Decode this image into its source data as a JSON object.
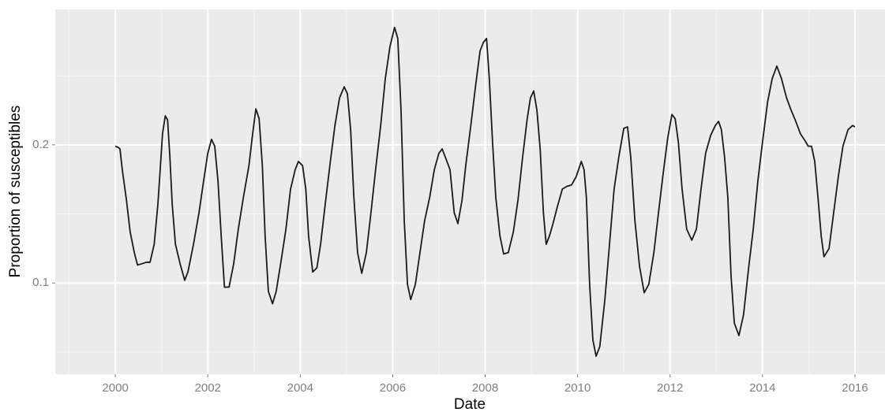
{
  "chart_data": {
    "type": "line",
    "x_label": "Date",
    "y_label": "Proportion of susceptibles",
    "color": "#1a1a1a",
    "grid": true,
    "xlim": [
      1998.7,
      2016.65
    ],
    "ylim": [
      0.034,
      0.298
    ],
    "xticks": [
      2000,
      2002,
      2004,
      2006,
      2008,
      2010,
      2012,
      2014,
      2016
    ],
    "yticks": [
      0.1,
      0.2
    ],
    "x": [
      2000.0,
      2000.07,
      2000.1,
      2000.15,
      2000.24,
      2000.32,
      2000.41,
      2000.48,
      2000.58,
      2000.67,
      2000.75,
      2000.84,
      2000.92,
      2000.97,
      2001.02,
      2001.08,
      2001.13,
      2001.18,
      2001.23,
      2001.3,
      2001.4,
      2001.5,
      2001.57,
      2001.69,
      2001.81,
      2001.91,
      2002.0,
      2002.08,
      2002.15,
      2002.22,
      2002.29,
      2002.36,
      2002.46,
      2002.56,
      2002.66,
      2002.77,
      2002.89,
      2002.97,
      2003.04,
      2003.11,
      2003.18,
      2003.24,
      2003.31,
      2003.4,
      2003.48,
      2003.59,
      2003.69,
      2003.79,
      2003.89,
      2003.96,
      2004.05,
      2004.12,
      2004.18,
      2004.27,
      2004.36,
      2004.44,
      2004.54,
      2004.64,
      2004.75,
      2004.85,
      2004.95,
      2005.02,
      2005.09,
      2005.16,
      2005.24,
      2005.33,
      2005.43,
      2005.53,
      2005.63,
      2005.74,
      2005.84,
      2005.94,
      2006.04,
      2006.11,
      2006.18,
      2006.25,
      2006.32,
      2006.39,
      2006.49,
      2006.59,
      2006.69,
      2006.8,
      2006.9,
      2007.0,
      2007.07,
      2007.14,
      2007.24,
      2007.33,
      2007.41,
      2007.5,
      2007.58,
      2007.69,
      2007.79,
      2007.89,
      2007.96,
      2008.03,
      2008.09,
      2008.16,
      2008.23,
      2008.32,
      2008.4,
      2008.5,
      2008.61,
      2008.71,
      2008.81,
      2008.91,
      2008.98,
      2009.05,
      2009.12,
      2009.19,
      2009.26,
      2009.32,
      2009.39,
      2009.46,
      2009.56,
      2009.67,
      2009.77,
      2009.87,
      2009.97,
      2010.08,
      2010.14,
      2010.19,
      2010.26,
      2010.33,
      2010.4,
      2010.48,
      2010.59,
      2010.69,
      2010.79,
      2010.89,
      2011.0,
      2011.08,
      2011.15,
      2011.24,
      2011.34,
      2011.44,
      2011.54,
      2011.65,
      2011.75,
      2011.85,
      2011.95,
      2012.04,
      2012.11,
      2012.18,
      2012.26,
      2012.36,
      2012.47,
      2012.57,
      2012.67,
      2012.77,
      2012.88,
      2012.98,
      2013.05,
      2013.11,
      2013.18,
      2013.25,
      2013.32,
      2013.39,
      2013.49,
      2013.59,
      2013.7,
      2013.8,
      2013.9,
      2014.0,
      2014.11,
      2014.21,
      2014.31,
      2014.41,
      2014.52,
      2014.62,
      2014.72,
      2014.82,
      2014.92,
      2014.99,
      2015.06,
      2015.13,
      2015.2,
      2015.27,
      2015.33,
      2015.44,
      2015.54,
      2015.64,
      2015.74,
      2015.85,
      2015.95,
      2016.0
    ],
    "values": [
      0.199,
      0.198,
      0.197,
      0.182,
      0.16,
      0.137,
      0.122,
      0.113,
      0.114,
      0.115,
      0.115,
      0.128,
      0.157,
      0.182,
      0.208,
      0.221,
      0.218,
      0.191,
      0.157,
      0.128,
      0.114,
      0.102,
      0.108,
      0.128,
      0.151,
      0.174,
      0.194,
      0.204,
      0.199,
      0.174,
      0.134,
      0.097,
      0.097,
      0.114,
      0.139,
      0.162,
      0.185,
      0.208,
      0.226,
      0.219,
      0.185,
      0.134,
      0.094,
      0.085,
      0.094,
      0.117,
      0.139,
      0.168,
      0.182,
      0.188,
      0.185,
      0.168,
      0.134,
      0.108,
      0.111,
      0.128,
      0.157,
      0.185,
      0.214,
      0.234,
      0.242,
      0.237,
      0.211,
      0.162,
      0.122,
      0.107,
      0.122,
      0.151,
      0.182,
      0.214,
      0.248,
      0.271,
      0.285,
      0.277,
      0.225,
      0.145,
      0.099,
      0.088,
      0.099,
      0.122,
      0.145,
      0.162,
      0.182,
      0.194,
      0.197,
      0.191,
      0.182,
      0.151,
      0.143,
      0.16,
      0.185,
      0.214,
      0.242,
      0.268,
      0.274,
      0.277,
      0.248,
      0.202,
      0.162,
      0.134,
      0.121,
      0.122,
      0.137,
      0.16,
      0.191,
      0.219,
      0.234,
      0.239,
      0.225,
      0.197,
      0.151,
      0.128,
      0.134,
      0.142,
      0.155,
      0.168,
      0.17,
      0.171,
      0.177,
      0.188,
      0.182,
      0.162,
      0.099,
      0.059,
      0.047,
      0.054,
      0.088,
      0.128,
      0.168,
      0.191,
      0.212,
      0.213,
      0.191,
      0.145,
      0.112,
      0.093,
      0.099,
      0.122,
      0.151,
      0.179,
      0.205,
      0.222,
      0.219,
      0.202,
      0.168,
      0.139,
      0.131,
      0.139,
      0.168,
      0.194,
      0.207,
      0.214,
      0.217,
      0.211,
      0.191,
      0.162,
      0.105,
      0.071,
      0.062,
      0.077,
      0.111,
      0.139,
      0.174,
      0.202,
      0.231,
      0.248,
      0.257,
      0.248,
      0.234,
      0.225,
      0.217,
      0.208,
      0.203,
      0.199,
      0.199,
      0.188,
      0.162,
      0.134,
      0.119,
      0.125,
      0.151,
      0.177,
      0.199,
      0.211,
      0.214,
      0.213
    ]
  }
}
